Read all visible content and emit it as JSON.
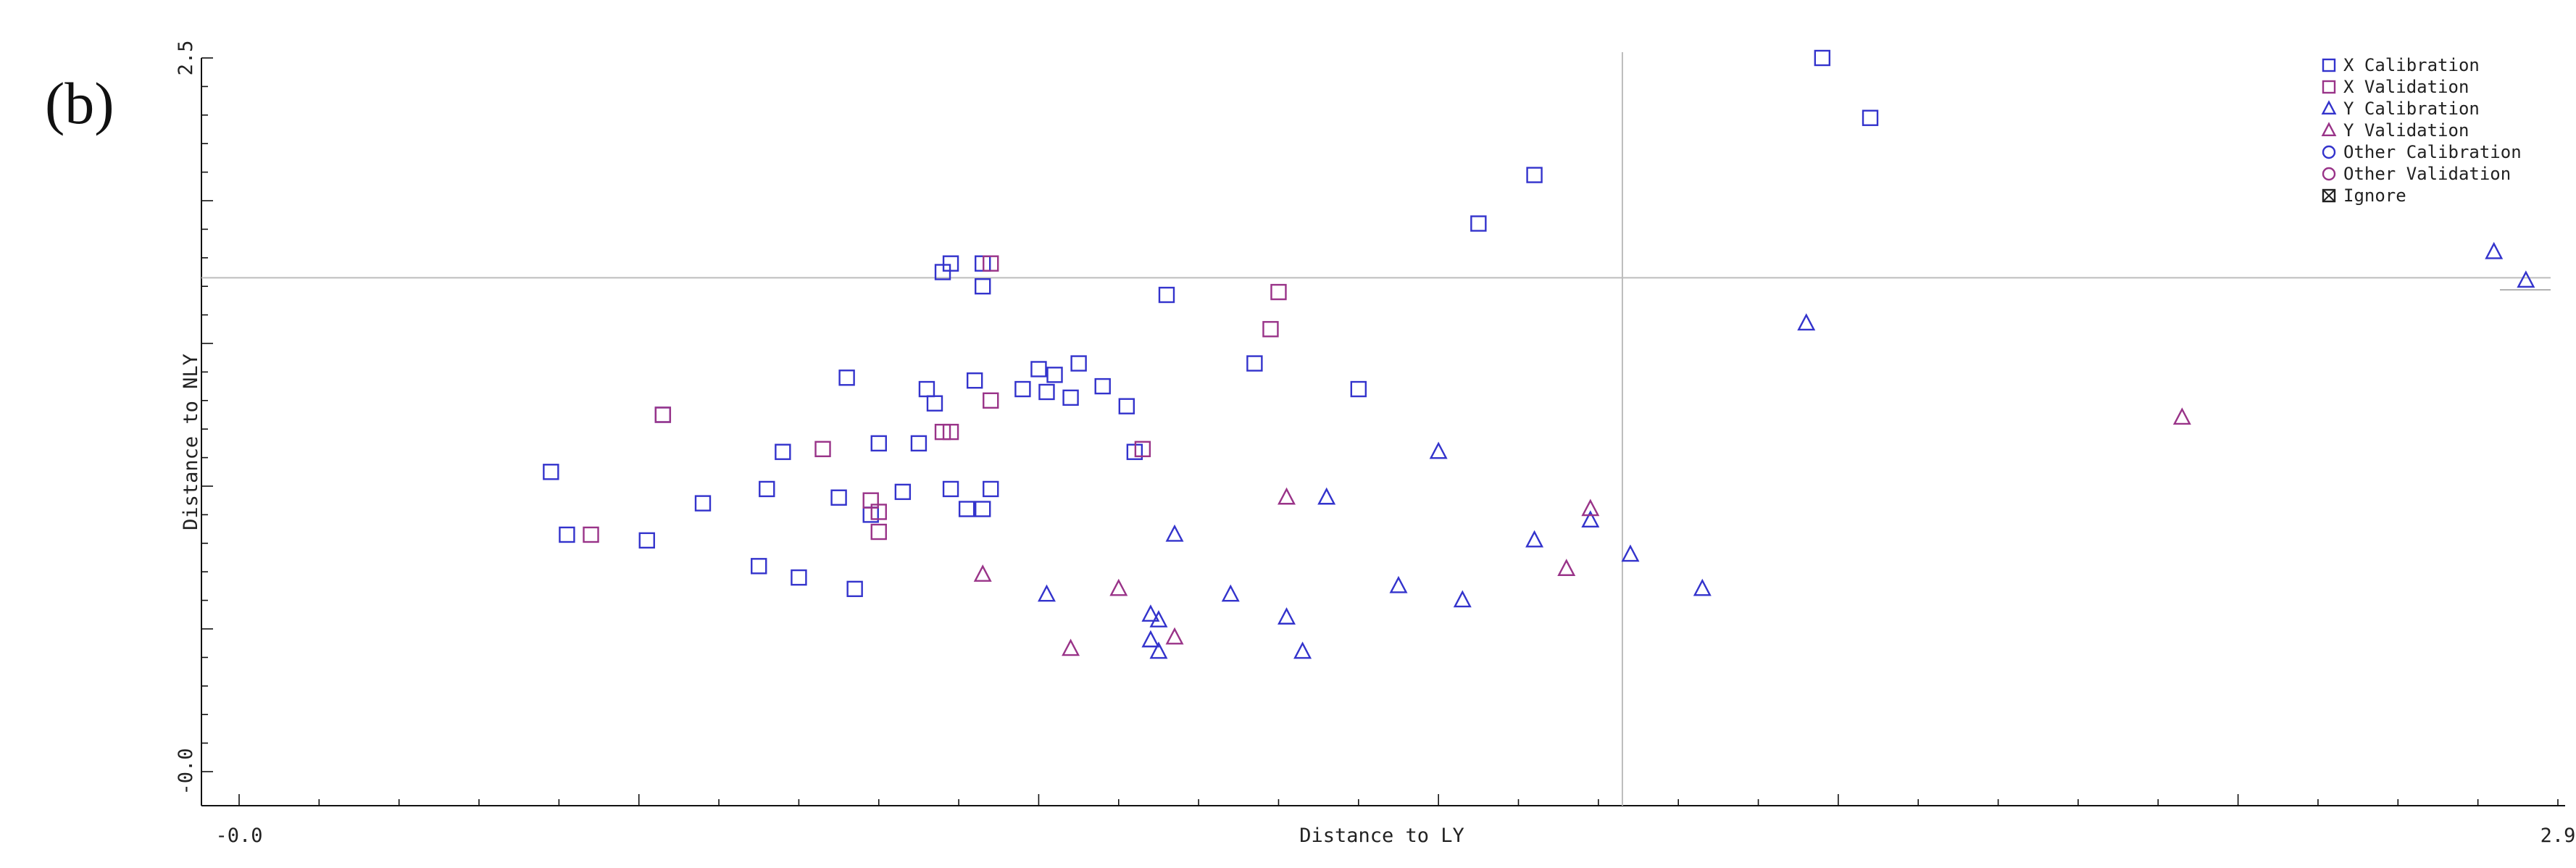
{
  "panel_label": "(b)",
  "chart_data": {
    "type": "scatter",
    "title": "",
    "xlabel": "Distance to LY",
    "ylabel": "Distance to NLY",
    "xlim": [
      -0.0,
      2.9
    ],
    "ylim": [
      -0.0,
      2.5
    ],
    "x_tick_labels": [
      {
        "value": -0.0,
        "label": "-0.0"
      },
      {
        "value": 2.9,
        "label": "2.9"
      }
    ],
    "y_tick_labels": [
      {
        "value": -0.0,
        "label": "-0.0"
      },
      {
        "value": 2.5,
        "label": "2.5"
      }
    ],
    "x_threshold": 1.73,
    "y_threshold": 1.73,
    "grid": false,
    "legend_position": "top-right",
    "legend": [
      {
        "label": "X Calibration",
        "marker": "square",
        "color": "#3333cc"
      },
      {
        "label": "X Validation",
        "marker": "square",
        "color": "#993388"
      },
      {
        "label": "Y Calibration",
        "marker": "triangle",
        "color": "#3333cc"
      },
      {
        "label": "Y Validation",
        "marker": "triangle",
        "color": "#993388"
      },
      {
        "label": "Other Calibration",
        "marker": "circle",
        "color": "#3333cc"
      },
      {
        "label": "Other Validation",
        "marker": "circle",
        "color": "#993388"
      },
      {
        "label": "Ignore",
        "marker": "crossed-square",
        "color": "#222222"
      }
    ],
    "series": [
      {
        "name": "X Calibration",
        "marker": "square",
        "color": "#3333cc",
        "points": [
          [
            0.39,
            1.05
          ],
          [
            0.41,
            0.83
          ],
          [
            0.51,
            0.81
          ],
          [
            0.53,
            1.25
          ],
          [
            0.58,
            0.94
          ],
          [
            0.65,
            0.72
          ],
          [
            0.66,
            0.99
          ],
          [
            0.68,
            1.12
          ],
          [
            0.7,
            0.68
          ],
          [
            0.75,
            0.96
          ],
          [
            0.76,
            1.38
          ],
          [
            0.77,
            0.64
          ],
          [
            0.79,
            0.9
          ],
          [
            0.8,
            1.15
          ],
          [
            0.83,
            0.98
          ],
          [
            0.85,
            1.15
          ],
          [
            0.86,
            1.34
          ],
          [
            0.87,
            1.29
          ],
          [
            0.88,
            1.75
          ],
          [
            0.89,
            1.78
          ],
          [
            0.89,
            0.99
          ],
          [
            0.91,
            0.92
          ],
          [
            0.92,
            1.37
          ],
          [
            0.93,
            0.92
          ],
          [
            0.93,
            1.7
          ],
          [
            0.93,
            1.78
          ],
          [
            0.94,
            0.99
          ],
          [
            0.98,
            1.34
          ],
          [
            1.0,
            1.41
          ],
          [
            1.01,
            1.33
          ],
          [
            1.02,
            1.39
          ],
          [
            1.04,
            1.31
          ],
          [
            1.05,
            1.43
          ],
          [
            1.08,
            1.35
          ],
          [
            1.11,
            1.28
          ],
          [
            1.12,
            1.12
          ],
          [
            1.16,
            1.67
          ],
          [
            1.27,
            1.43
          ],
          [
            1.4,
            1.34
          ],
          [
            1.55,
            1.92
          ],
          [
            1.62,
            2.09
          ],
          [
            1.98,
            2.5
          ],
          [
            2.04,
            2.29
          ]
        ]
      },
      {
        "name": "X Validation",
        "marker": "square",
        "color": "#993388",
        "points": [
          [
            0.44,
            0.83
          ],
          [
            0.53,
            1.25
          ],
          [
            0.73,
            1.13
          ],
          [
            0.79,
            0.95
          ],
          [
            0.8,
            0.91
          ],
          [
            0.8,
            0.84
          ],
          [
            0.88,
            1.19
          ],
          [
            0.89,
            1.19
          ],
          [
            0.94,
            1.78
          ],
          [
            0.94,
            1.3
          ],
          [
            1.13,
            1.13
          ],
          [
            1.29,
            1.55
          ],
          [
            1.3,
            1.68
          ]
        ]
      },
      {
        "name": "Y Calibration",
        "marker": "triangle",
        "color": "#3333cc",
        "points": [
          [
            1.01,
            0.62
          ],
          [
            1.14,
            0.55
          ],
          [
            1.14,
            0.46
          ],
          [
            1.15,
            0.53
          ],
          [
            1.15,
            0.42
          ],
          [
            1.17,
            0.83
          ],
          [
            1.24,
            0.62
          ],
          [
            1.31,
            0.54
          ],
          [
            1.33,
            0.42
          ],
          [
            1.36,
            0.96
          ],
          [
            1.45,
            0.65
          ],
          [
            1.5,
            1.12
          ],
          [
            1.53,
            0.6
          ],
          [
            1.62,
            0.81
          ],
          [
            1.69,
            0.88
          ],
          [
            1.74,
            0.76
          ],
          [
            1.83,
            0.64
          ],
          [
            1.96,
            1.57
          ],
          [
            2.82,
            1.82
          ],
          [
            2.86,
            1.72
          ]
        ]
      },
      {
        "name": "Y Validation",
        "marker": "triangle",
        "color": "#993388",
        "points": [
          [
            0.93,
            0.69
          ],
          [
            1.04,
            0.43
          ],
          [
            1.1,
            0.64
          ],
          [
            1.17,
            0.47
          ],
          [
            1.31,
            0.96
          ],
          [
            1.66,
            0.71
          ],
          [
            1.69,
            0.92
          ],
          [
            2.43,
            1.24
          ]
        ]
      }
    ]
  }
}
